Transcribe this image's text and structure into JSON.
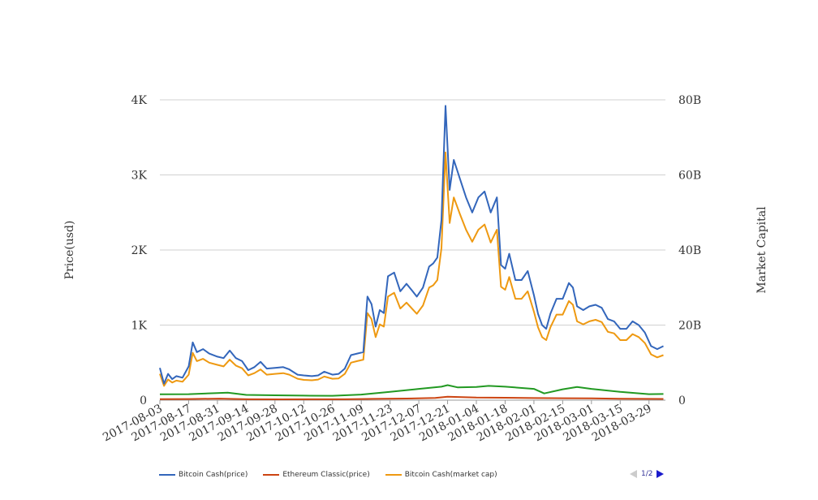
{
  "chart_data": {
    "type": "line",
    "title": "",
    "y_left_label": "Price(usd)",
    "y_right_label": "Market Capital",
    "y_left_range": [
      0,
      4000
    ],
    "y_left_ticks": [
      {
        "value": 0,
        "label": "0"
      },
      {
        "value": 1000,
        "label": "1K"
      },
      {
        "value": 2000,
        "label": "2K"
      },
      {
        "value": 3000,
        "label": "3K"
      },
      {
        "value": 4000,
        "label": "4K"
      }
    ],
    "y_right_range": [
      0,
      80000000000
    ],
    "y_right_ticks": [
      {
        "value": 0,
        "label": "0"
      },
      {
        "value": 20000000000,
        "label": "20B"
      },
      {
        "value": 40000000000,
        "label": "40B"
      },
      {
        "value": 60000000000,
        "label": "60B"
      },
      {
        "value": 80000000000,
        "label": "80B"
      }
    ],
    "x_range": [
      "2017-08-03",
      "2018-04-06"
    ],
    "x_ticks": [
      "2017-08-03",
      "2017-08-17",
      "2017-08-31",
      "2017-09-14",
      "2017-09-28",
      "2017-10-12",
      "2017-10-26",
      "2017-11-09",
      "2017-11-23",
      "2017-12-07",
      "2017-12-21",
      "2018-01-04",
      "2018-01-18",
      "2018-02-01",
      "2018-02-15",
      "2018-03-01",
      "2018-03-15",
      "2018-03-29"
    ],
    "grid": true,
    "legend_position": "bottom-left",
    "legend_page": "1/2",
    "series": [
      {
        "name": "Bitcoin Cash(price)",
        "axis": "left",
        "color": "#3366bb",
        "points": [
          [
            "2017-08-03",
            430
          ],
          [
            "2017-08-05",
            220
          ],
          [
            "2017-08-07",
            350
          ],
          [
            "2017-08-09",
            280
          ],
          [
            "2017-08-11",
            320
          ],
          [
            "2017-08-14",
            300
          ],
          [
            "2017-08-17",
            450
          ],
          [
            "2017-08-19",
            770
          ],
          [
            "2017-08-21",
            640
          ],
          [
            "2017-08-24",
            680
          ],
          [
            "2017-08-27",
            620
          ],
          [
            "2017-08-31",
            580
          ],
          [
            "2017-09-03",
            560
          ],
          [
            "2017-09-06",
            660
          ],
          [
            "2017-09-09",
            560
          ],
          [
            "2017-09-12",
            520
          ],
          [
            "2017-09-15",
            400
          ],
          [
            "2017-09-18",
            440
          ],
          [
            "2017-09-21",
            510
          ],
          [
            "2017-09-24",
            420
          ],
          [
            "2017-09-28",
            430
          ],
          [
            "2017-10-02",
            440
          ],
          [
            "2017-10-05",
            410
          ],
          [
            "2017-10-09",
            340
          ],
          [
            "2017-10-12",
            330
          ],
          [
            "2017-10-16",
            320
          ],
          [
            "2017-10-19",
            330
          ],
          [
            "2017-10-22",
            380
          ],
          [
            "2017-10-26",
            340
          ],
          [
            "2017-10-29",
            350
          ],
          [
            "2017-11-01",
            420
          ],
          [
            "2017-11-04",
            600
          ],
          [
            "2017-11-07",
            620
          ],
          [
            "2017-11-10",
            640
          ],
          [
            "2017-11-12",
            1380
          ],
          [
            "2017-11-14",
            1280
          ],
          [
            "2017-11-16",
            980
          ],
          [
            "2017-11-18",
            1200
          ],
          [
            "2017-11-20",
            1160
          ],
          [
            "2017-11-22",
            1650
          ],
          [
            "2017-11-25",
            1700
          ],
          [
            "2017-11-28",
            1450
          ],
          [
            "2017-12-01",
            1550
          ],
          [
            "2017-12-04",
            1450
          ],
          [
            "2017-12-06",
            1380
          ],
          [
            "2017-12-09",
            1500
          ],
          [
            "2017-12-12",
            1780
          ],
          [
            "2017-12-14",
            1820
          ],
          [
            "2017-12-16",
            1900
          ],
          [
            "2017-12-18",
            2400
          ],
          [
            "2017-12-20",
            3920
          ],
          [
            "2017-12-22",
            2800
          ],
          [
            "2017-12-24",
            3200
          ],
          [
            "2017-12-27",
            2950
          ],
          [
            "2017-12-30",
            2700
          ],
          [
            "2018-01-02",
            2500
          ],
          [
            "2018-01-05",
            2700
          ],
          [
            "2018-01-08",
            2780
          ],
          [
            "2018-01-11",
            2500
          ],
          [
            "2018-01-14",
            2700
          ],
          [
            "2018-01-16",
            1800
          ],
          [
            "2018-01-18",
            1750
          ],
          [
            "2018-01-20",
            1950
          ],
          [
            "2018-01-23",
            1600
          ],
          [
            "2018-01-26",
            1600
          ],
          [
            "2018-01-29",
            1720
          ],
          [
            "2018-02-01",
            1400
          ],
          [
            "2018-02-03",
            1150
          ],
          [
            "2018-02-05",
            1000
          ],
          [
            "2018-02-07",
            950
          ],
          [
            "2018-02-09",
            1150
          ],
          [
            "2018-02-12",
            1350
          ],
          [
            "2018-02-15",
            1350
          ],
          [
            "2018-02-18",
            1560
          ],
          [
            "2018-02-20",
            1500
          ],
          [
            "2018-02-22",
            1250
          ],
          [
            "2018-02-25",
            1200
          ],
          [
            "2018-02-28",
            1250
          ],
          [
            "2018-03-03",
            1270
          ],
          [
            "2018-03-06",
            1230
          ],
          [
            "2018-03-09",
            1080
          ],
          [
            "2018-03-12",
            1050
          ],
          [
            "2018-03-15",
            950
          ],
          [
            "2018-03-18",
            950
          ],
          [
            "2018-03-21",
            1050
          ],
          [
            "2018-03-24",
            1000
          ],
          [
            "2018-03-27",
            900
          ],
          [
            "2018-03-30",
            720
          ],
          [
            "2018-04-02",
            680
          ],
          [
            "2018-04-05",
            720
          ]
        ]
      },
      {
        "name": "Ethereum Classic(price)",
        "axis": "left",
        "color": "#cc4411",
        "points": [
          [
            "2017-08-03",
            14
          ],
          [
            "2017-08-17",
            15
          ],
          [
            "2017-09-01",
            20
          ],
          [
            "2017-09-15",
            12
          ],
          [
            "2017-10-01",
            11
          ],
          [
            "2017-10-15",
            12
          ],
          [
            "2017-11-01",
            12
          ],
          [
            "2017-11-15",
            17
          ],
          [
            "2017-12-01",
            22
          ],
          [
            "2017-12-15",
            30
          ],
          [
            "2017-12-21",
            45
          ],
          [
            "2018-01-04",
            35
          ],
          [
            "2018-01-18",
            32
          ],
          [
            "2018-02-01",
            28
          ],
          [
            "2018-02-15",
            26
          ],
          [
            "2018-03-01",
            24
          ],
          [
            "2018-03-15",
            18
          ],
          [
            "2018-04-05",
            16
          ]
        ]
      },
      {
        "name": "Bitcoin Cash(market cap)",
        "axis": "right",
        "color": "#ee9911",
        "points": [
          [
            "2017-08-03",
            7000000000
          ],
          [
            "2017-08-05",
            3800000000
          ],
          [
            "2017-08-07",
            5500000000
          ],
          [
            "2017-08-09",
            4700000000
          ],
          [
            "2017-08-11",
            5200000000
          ],
          [
            "2017-08-14",
            4900000000
          ],
          [
            "2017-08-17",
            6800000000
          ],
          [
            "2017-08-19",
            12600000000
          ],
          [
            "2017-08-21",
            10400000000
          ],
          [
            "2017-08-24",
            11000000000
          ],
          [
            "2017-08-27",
            10000000000
          ],
          [
            "2017-08-31",
            9400000000
          ],
          [
            "2017-09-03",
            9000000000
          ],
          [
            "2017-09-06",
            10800000000
          ],
          [
            "2017-09-09",
            9200000000
          ],
          [
            "2017-09-12",
            8500000000
          ],
          [
            "2017-09-15",
            6600000000
          ],
          [
            "2017-09-18",
            7200000000
          ],
          [
            "2017-09-21",
            8200000000
          ],
          [
            "2017-09-24",
            6800000000
          ],
          [
            "2017-09-28",
            7000000000
          ],
          [
            "2017-10-02",
            7200000000
          ],
          [
            "2017-10-05",
            6800000000
          ],
          [
            "2017-10-09",
            5700000000
          ],
          [
            "2017-10-12",
            5400000000
          ],
          [
            "2017-10-16",
            5300000000
          ],
          [
            "2017-10-19",
            5500000000
          ],
          [
            "2017-10-22",
            6300000000
          ],
          [
            "2017-10-26",
            5700000000
          ],
          [
            "2017-10-29",
            5800000000
          ],
          [
            "2017-11-01",
            7000000000
          ],
          [
            "2017-11-04",
            10000000000
          ],
          [
            "2017-11-07",
            10400000000
          ],
          [
            "2017-11-10",
            10800000000
          ],
          [
            "2017-11-12",
            23200000000
          ],
          [
            "2017-11-14",
            21600000000
          ],
          [
            "2017-11-16",
            16800000000
          ],
          [
            "2017-11-18",
            20200000000
          ],
          [
            "2017-11-20",
            19600000000
          ],
          [
            "2017-11-22",
            27600000000
          ],
          [
            "2017-11-25",
            28600000000
          ],
          [
            "2017-11-28",
            24400000000
          ],
          [
            "2017-12-01",
            26000000000
          ],
          [
            "2017-12-04",
            24200000000
          ],
          [
            "2017-12-06",
            23000000000
          ],
          [
            "2017-12-09",
            25200000000
          ],
          [
            "2017-12-12",
            30000000000
          ],
          [
            "2017-12-14",
            30600000000
          ],
          [
            "2017-12-16",
            32000000000
          ],
          [
            "2017-12-18",
            40500000000
          ],
          [
            "2017-12-20",
            66000000000
          ],
          [
            "2017-12-22",
            47200000000
          ],
          [
            "2017-12-24",
            54000000000
          ],
          [
            "2017-12-27",
            49600000000
          ],
          [
            "2017-12-30",
            45400000000
          ],
          [
            "2018-01-02",
            42200000000
          ],
          [
            "2018-01-05",
            45400000000
          ],
          [
            "2018-01-08",
            46800000000
          ],
          [
            "2018-01-11",
            42000000000
          ],
          [
            "2018-01-14",
            45400000000
          ],
          [
            "2018-01-16",
            30200000000
          ],
          [
            "2018-01-18",
            29400000000
          ],
          [
            "2018-01-20",
            32800000000
          ],
          [
            "2018-01-23",
            27000000000
          ],
          [
            "2018-01-26",
            27000000000
          ],
          [
            "2018-01-29",
            29000000000
          ],
          [
            "2018-02-01",
            23600000000
          ],
          [
            "2018-02-03",
            19400000000
          ],
          [
            "2018-02-05",
            16800000000
          ],
          [
            "2018-02-07",
            16000000000
          ],
          [
            "2018-02-09",
            19400000000
          ],
          [
            "2018-02-12",
            22800000000
          ],
          [
            "2018-02-15",
            22800000000
          ],
          [
            "2018-02-18",
            26400000000
          ],
          [
            "2018-02-20",
            25400000000
          ],
          [
            "2018-02-22",
            21000000000
          ],
          [
            "2018-02-25",
            20200000000
          ],
          [
            "2018-02-28",
            21000000000
          ],
          [
            "2018-03-03",
            21400000000
          ],
          [
            "2018-03-06",
            20800000000
          ],
          [
            "2018-03-09",
            18200000000
          ],
          [
            "2018-03-12",
            17800000000
          ],
          [
            "2018-03-15",
            16000000000
          ],
          [
            "2018-03-18",
            16000000000
          ],
          [
            "2018-03-21",
            17600000000
          ],
          [
            "2018-03-24",
            16800000000
          ],
          [
            "2018-03-27",
            15200000000
          ],
          [
            "2018-03-30",
            12200000000
          ],
          [
            "2018-04-02",
            11400000000
          ],
          [
            "2018-04-05",
            12000000000
          ]
        ]
      },
      {
        "name": "",
        "axis": "left",
        "color": "#229922",
        "points": [
          [
            "2017-08-03",
            78
          ],
          [
            "2017-08-17",
            80
          ],
          [
            "2017-08-31",
            95
          ],
          [
            "2017-09-05",
            100
          ],
          [
            "2017-09-14",
            70
          ],
          [
            "2017-09-28",
            65
          ],
          [
            "2017-10-12",
            60
          ],
          [
            "2017-10-26",
            58
          ],
          [
            "2017-11-09",
            75
          ],
          [
            "2017-11-23",
            110
          ],
          [
            "2017-12-07",
            150
          ],
          [
            "2017-12-18",
            180
          ],
          [
            "2017-12-21",
            200
          ],
          [
            "2017-12-26",
            170
          ],
          [
            "2018-01-04",
            175
          ],
          [
            "2018-01-10",
            190
          ],
          [
            "2018-01-18",
            180
          ],
          [
            "2018-02-01",
            150
          ],
          [
            "2018-02-06",
            90
          ],
          [
            "2018-02-15",
            145
          ],
          [
            "2018-02-22",
            175
          ],
          [
            "2018-03-01",
            150
          ],
          [
            "2018-03-15",
            110
          ],
          [
            "2018-03-29",
            80
          ],
          [
            "2018-04-05",
            82
          ]
        ]
      }
    ]
  },
  "legend": {
    "items": [
      {
        "label": "Bitcoin Cash(price)",
        "color": "#3366bb"
      },
      {
        "label": "Ethereum Classic(price)",
        "color": "#cc4411"
      },
      {
        "label": "Bitcoin Cash(market cap)",
        "color": "#ee9911"
      }
    ],
    "page": "1/2"
  }
}
